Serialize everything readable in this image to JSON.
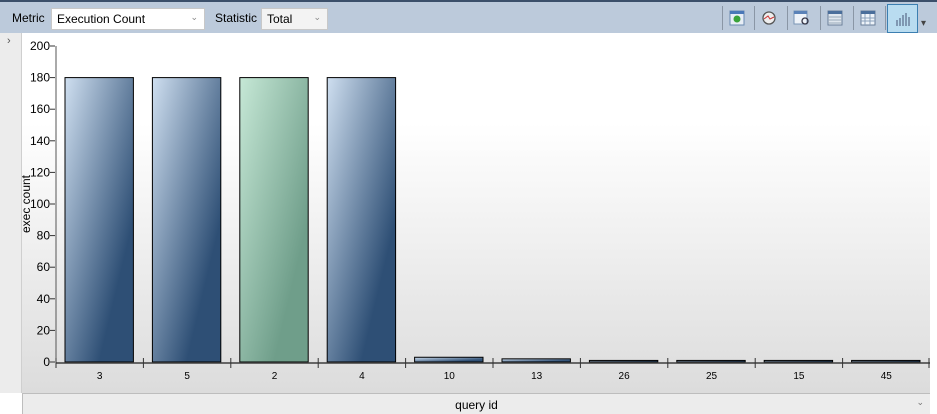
{
  "toolbar": {
    "metric_label": "Metric",
    "metric_value": "Execution Count",
    "statistic_label": "Statistic",
    "statistic_value": "Total",
    "buttons": [
      "refresh-icon",
      "tracking-icon",
      "view-query-icon",
      "grid-icon",
      "table-icon",
      "chart-icon"
    ],
    "active_button": "chart-icon"
  },
  "colors": {
    "bar": "#2e4f75",
    "bar_selected": "#6f9e8a",
    "toolbar": "#bccadb"
  },
  "chart_data": {
    "type": "bar",
    "categories": [
      "3",
      "5",
      "2",
      "4",
      "10",
      "13",
      "26",
      "25",
      "15",
      "45"
    ],
    "values": [
      180,
      180,
      180,
      180,
      3,
      2,
      1,
      1,
      1,
      1
    ],
    "selected_category": "2",
    "ylabel": "exec count",
    "xlabel": "query id",
    "ylim": [
      0,
      200
    ],
    "yticks": [
      0,
      20,
      40,
      60,
      80,
      100,
      120,
      140,
      160,
      180,
      200
    ]
  }
}
